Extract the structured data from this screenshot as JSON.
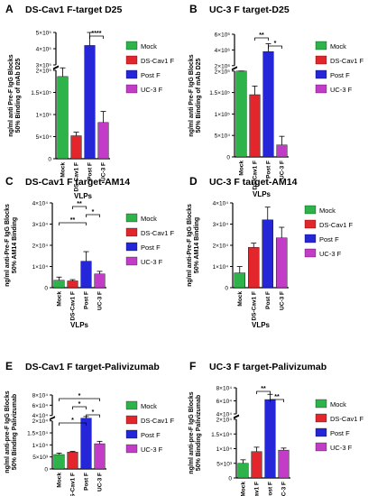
{
  "legend_entries": [
    "Mock",
    "DS-Cav1 F",
    "Post F",
    "UC-3 F"
  ],
  "colors": {
    "Mock": "#2db34a",
    "DS-Cav1 F": "#e3262b",
    "Post F": "#2626d9",
    "UC-3 F": "#c23cc8"
  },
  "chart_data": [
    {
      "type": "bar",
      "panel": "A",
      "title": "DS-Cav1 F-target D25",
      "ylabel": "ng/ml anti Pre-F IgG Blocks 50% Binding of mAb D25",
      "xlabel": "VLPs",
      "categories": [
        "Mock",
        "DS-Cav1 F",
        "Post F",
        "UC-3 F"
      ],
      "values": [
        186000,
        52000,
        420000,
        82000
      ],
      "errors": [
        60000,
        8000,
        90000,
        25000
      ],
      "y_tick_labels": [
        "0",
        "5×10⁴",
        "1×10⁵",
        "1.5×10⁵",
        "2×10⁵",
        "3×10⁵",
        "4×10⁵",
        "5×10⁵"
      ],
      "broken_axis": true,
      "significance": [
        {
          "from": "Post F",
          "to": "UC-3 F",
          "label": "****"
        }
      ],
      "legend": "right"
    },
    {
      "type": "bar",
      "panel": "B",
      "title": "UC-3 F target-D25",
      "ylabel": "ng/ml anti Pre-F IgG Blocks 50% Binding of mAb D25",
      "xlabel": "VLPs",
      "categories": [
        "Mock",
        "DS-Cav1 F",
        "Post F",
        "UC-3 F"
      ],
      "values": [
        200000,
        145000,
        3800000,
        28000
      ],
      "errors": [
        20000,
        20000,
        1000000,
        20000
      ],
      "y_tick_labels": [
        "0",
        "5×10⁴",
        "1×10⁵",
        "1.5×10⁵",
        "2×10⁵",
        "2×10⁶",
        "4×10⁶",
        "6×10⁶"
      ],
      "broken_axis": true,
      "significance": [
        {
          "from": "DS-Cav1 F",
          "to": "Post F",
          "label": "**"
        },
        {
          "from": "Post F",
          "to": "UC-3 F",
          "label": "*"
        }
      ],
      "legend": "right"
    },
    {
      "type": "bar",
      "panel": "C",
      "title": "DS-Cav1 F target-AM14",
      "ylabel": "ng/ml anti-Pre-F IgG Blocks 50% AM14 Binding",
      "xlabel": "VLPs",
      "categories": [
        "Mock",
        "DS-Cav1 F",
        "Post F",
        "UC-3 F"
      ],
      "values": [
        3500,
        3200,
        12500,
        6500
      ],
      "errors": [
        1500,
        600,
        4500,
        1200
      ],
      "y_tick_labels": [
        "0",
        "1×10⁴",
        "2×10⁴",
        "3×10⁴",
        "4×10⁴"
      ],
      "ylim": [
        0,
        40000
      ],
      "significance": [
        {
          "from": "DS-Cav1 F",
          "to": "Post F",
          "label": "**"
        },
        {
          "from": "Post F",
          "to": "UC-3 F",
          "label": "*"
        },
        {
          "from": "Mock",
          "to": "Post F",
          "label": "**"
        }
      ],
      "legend": "right"
    },
    {
      "type": "bar",
      "panel": "D",
      "title": "UC-3 F target-AM14",
      "ylabel": "ng/ml anti-Pre-F IgG Blocks 50% AM14 Binding",
      "xlabel": "VLPs",
      "categories": [
        "Mock",
        "DS-Cav1 F",
        "Post F",
        "UC-3 F"
      ],
      "values": [
        7000,
        19000,
        32000,
        23500
      ],
      "errors": [
        3000,
        2000,
        6000,
        5000
      ],
      "y_tick_labels": [
        "0",
        "1×10⁴",
        "2×10⁴",
        "3×10⁴",
        "4×10⁴"
      ],
      "ylim": [
        0,
        40000
      ],
      "significance": [],
      "legend": "right"
    },
    {
      "type": "bar",
      "panel": "E",
      "title": "DS-Cav1 F target-Palivizumab",
      "ylabel": "ng/ml anti-pre-F IgG Blocks 50% Binding Palivizumab",
      "xlabel": "VLPs",
      "categories": [
        "Mock",
        "DS-Cav1 F",
        "Post F",
        "UC-3 F"
      ],
      "values": [
        6000,
        7000,
        30000,
        10500
      ],
      "errors": [
        600,
        300,
        6000,
        1000
      ],
      "y_tick_labels": [
        "0",
        "5×10³",
        "1×10⁴",
        "1.5×10⁴",
        "2×10⁴",
        "4×10⁴",
        "6×10⁴",
        "8×10⁴"
      ],
      "broken_axis": true,
      "significance": [
        {
          "from": "Mock",
          "to": "UC-3 F",
          "label": "*"
        },
        {
          "from": "DS-Cav1 F",
          "to": "Post F",
          "label": "*"
        },
        {
          "from": "Post F",
          "to": "UC-3 F",
          "label": "*"
        },
        {
          "from": "Mock",
          "to": "Post F",
          "label": "*"
        }
      ],
      "legend": "right"
    },
    {
      "type": "bar",
      "panel": "F",
      "title": "UC-3 F target-Palivizumab",
      "ylabel": "ng/ml anti-pre-F IgG Blocks 50% Binding Palivizumab",
      "xlabel": "VLPs",
      "categories": [
        "Mock",
        "DS-Cav1 F",
        "Post F",
        "UC-3 F"
      ],
      "values": [
        5000,
        9000,
        62000,
        9500
      ],
      "errors": [
        1200,
        1500,
        8000,
        700
      ],
      "y_tick_labels": [
        "0",
        "5×10³",
        "1×10⁴",
        "1.5×10⁴",
        "2×10⁴",
        "4×10⁴",
        "6×10⁴",
        "8×10⁴"
      ],
      "broken_axis": true,
      "significance": [
        {
          "from": "DS-Cav1 F",
          "to": "Post F",
          "label": "**"
        },
        {
          "from": "Post F",
          "to": "UC-3 F",
          "label": "**"
        }
      ],
      "legend": "right"
    }
  ]
}
